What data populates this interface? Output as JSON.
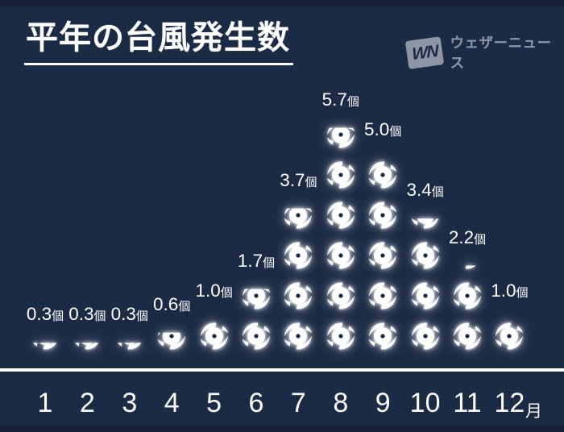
{
  "header": {
    "title": "平年の台風発生数"
  },
  "logo": {
    "mark": "WN",
    "text": "ウェザーニュース"
  },
  "colors": {
    "background": "#1c2b45",
    "letterbox": "#121f35",
    "text": "#ffffff",
    "icon": "#ffffff",
    "logo_gray": "#8d96a5"
  },
  "chart_data": {
    "type": "bar",
    "style": "pictogram",
    "title": "平年の台風発生数",
    "categories": [
      "1",
      "2",
      "3",
      "4",
      "5",
      "6",
      "7",
      "8",
      "9",
      "10",
      "11",
      "12"
    ],
    "category_suffix": "月",
    "values": [
      0.3,
      0.3,
      0.3,
      0.6,
      1.0,
      1.7,
      3.7,
      5.7,
      5.0,
      3.4,
      2.2,
      1.0
    ],
    "value_labels": [
      "0.3個",
      "0.3個",
      "0.3個",
      "0.6個",
      "1.0個",
      "1.7個",
      "3.7個",
      "5.7個",
      "5.0個",
      "3.4個",
      "2.2個",
      "1.0個"
    ],
    "unit": "個",
    "icon": "typhoon-icon",
    "icon_equals": 1,
    "xlabel": "月",
    "ylabel": "",
    "ylim": [
      0,
      6
    ],
    "grid": false,
    "legend_position": "none"
  }
}
